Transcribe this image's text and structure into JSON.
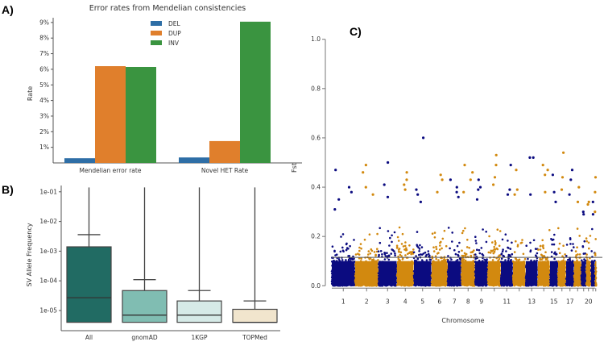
{
  "panel_labels": {
    "a": "A)",
    "b": "B)",
    "c": "C)"
  },
  "chart_data": [
    {
      "type": "bar",
      "title": "Error rates from Mendelian consistencies",
      "xlabel": "",
      "ylabel": "Rate",
      "categories": [
        "Mendelian error rate",
        "Novel HET Rate"
      ],
      "series": [
        {
          "name": "DEL",
          "color": "#2e6ea6",
          "values": [
            0.3,
            0.35
          ]
        },
        {
          "name": "DUP",
          "color": "#e07f2c",
          "values": [
            6.2,
            1.4
          ]
        },
        {
          "name": "INV",
          "color": "#3a9440",
          "values": [
            6.15,
            9.05
          ]
        }
      ],
      "yticks": [
        1,
        2,
        3,
        4,
        5,
        6,
        7,
        8,
        9
      ],
      "ytick_labels": [
        "1%",
        "2%",
        "3%",
        "4%",
        "5%",
        "6%",
        "7%",
        "8%",
        "9%"
      ],
      "ylim": [
        0,
        9.3
      ],
      "legend": "top-center"
    },
    {
      "type": "box",
      "title": "",
      "xlabel": "",
      "ylabel": "SV Allele Frequency",
      "yscale": "log",
      "ylim": [
        3e-06,
        0.16
      ],
      "yticks": [
        1e-05,
        0.0001,
        0.001,
        0.01,
        0.1
      ],
      "ytick_labels": [
        "1e-05",
        "1e-04",
        "1e-03",
        "1e-02",
        "1e-01"
      ],
      "categories": [
        "All",
        "gnomAD",
        "1KGP",
        "TOPMed"
      ],
      "boxes": [
        {
          "name": "All",
          "color": "#216b63",
          "q1": 4e-06,
          "median": 2.7e-05,
          "q3": 0.0014,
          "whisker_high": 0.0036,
          "max": 0.14
        },
        {
          "name": "gnomAD",
          "color": "#80bdb2",
          "q1": 4e-06,
          "median": 7e-06,
          "q3": 4.7e-05,
          "whisker_high": 0.00011,
          "max": 0.14
        },
        {
          "name": "1KGP",
          "color": "#d6eae7",
          "q1": 4e-06,
          "median": 7e-06,
          "q3": 2.1e-05,
          "whisker_high": 4.7e-05,
          "max": 0.14
        },
        {
          "name": "TOPMed",
          "color": "#f1e5cd",
          "q1": 4e-06,
          "median": 4e-06,
          "q3": 1.1e-05,
          "whisker_high": 2.1e-05,
          "max": 0.14
        }
      ]
    },
    {
      "type": "scatter",
      "subtype": "manhattan",
      "title": "",
      "xlabel": "Chromosome",
      "ylabel": "Fst",
      "ylim": [
        0,
        1.0
      ],
      "yticks": [
        0.0,
        0.2,
        0.4,
        0.6,
        0.8,
        1.0
      ],
      "ytick_labels": [
        "0.0",
        "0.2",
        "0.4",
        "0.6",
        "0.8",
        "1.0"
      ],
      "chromosomes": [
        1,
        2,
        3,
        4,
        5,
        6,
        7,
        8,
        9,
        10,
        11,
        12,
        13,
        14,
        15,
        16,
        17,
        18,
        19,
        20,
        21,
        22
      ],
      "chromosome_labels": [
        "1",
        "2",
        "3",
        "4",
        "5",
        "6",
        "7",
        "8",
        "9",
        "",
        "11",
        "",
        "13",
        "",
        "15",
        "",
        "17",
        "",
        "",
        "20",
        "",
        ""
      ],
      "colors": [
        "#0b0b80",
        "#d2890f"
      ],
      "threshold_line": 0.115,
      "bulk_typical_max": 0.2,
      "peaks": [
        {
          "chr": 1,
          "values": [
            0.47,
            0.4,
            0.38,
            0.35,
            0.31
          ]
        },
        {
          "chr": 2,
          "values": [
            0.49,
            0.46,
            0.4,
            0.37
          ]
        },
        {
          "chr": 3,
          "values": [
            0.5,
            0.41,
            0.36
          ]
        },
        {
          "chr": 4,
          "values": [
            0.46,
            0.43,
            0.41,
            0.39
          ]
        },
        {
          "chr": 5,
          "values": [
            0.6,
            0.39,
            0.37,
            0.34
          ]
        },
        {
          "chr": 6,
          "values": [
            0.45,
            0.43,
            0.38
          ]
        },
        {
          "chr": 7,
          "values": [
            0.43,
            0.4,
            0.38,
            0.36
          ]
        },
        {
          "chr": 8,
          "values": [
            0.49,
            0.46,
            0.43,
            0.38
          ]
        },
        {
          "chr": 9,
          "values": [
            0.43,
            0.4,
            0.39,
            0.35
          ]
        },
        {
          "chr": 10,
          "values": [
            0.53,
            0.49,
            0.44,
            0.41
          ]
        },
        {
          "chr": 11,
          "values": [
            0.49,
            0.39,
            0.37
          ]
        },
        {
          "chr": 12,
          "values": [
            0.47,
            0.39,
            0.37
          ]
        },
        {
          "chr": 13,
          "values": [
            0.52,
            0.52,
            0.37
          ]
        },
        {
          "chr": 14,
          "values": [
            0.49,
            0.47,
            0.45,
            0.38
          ]
        },
        {
          "chr": 15,
          "values": [
            0.45,
            0.38,
            0.34
          ]
        },
        {
          "chr": 16,
          "values": [
            0.54,
            0.44,
            0.39
          ]
        },
        {
          "chr": 17,
          "values": [
            0.47,
            0.43,
            0.37
          ]
        },
        {
          "chr": 18,
          "values": [
            0.4,
            0.34
          ]
        },
        {
          "chr": 19,
          "values": [
            0.3,
            0.29
          ]
        },
        {
          "chr": 20,
          "values": [
            0.34,
            0.33
          ]
        },
        {
          "chr": 21,
          "values": [
            0.34,
            0.29
          ]
        },
        {
          "chr": 22,
          "values": [
            0.44,
            0.38,
            0.3
          ]
        }
      ]
    }
  ]
}
